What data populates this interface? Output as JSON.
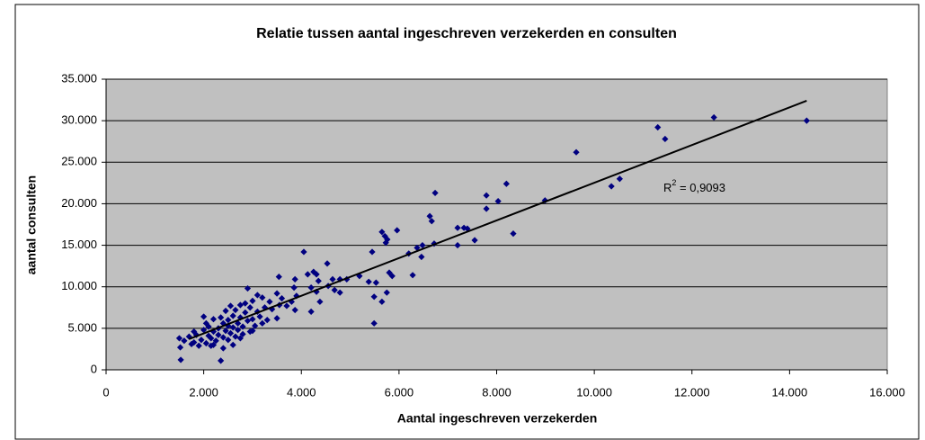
{
  "chart_data": {
    "type": "scatter",
    "title": "Relatie tussen aantal ingeschreven verzekerden en consulten",
    "x_label": "Aantal ingeschreven verzekerden",
    "y_label": "aantal consulten",
    "color": "#000080",
    "background": "#c0c0c0",
    "grid": true,
    "xlim": [
      0,
      16000
    ],
    "ylim": [
      0,
      35000
    ],
    "xticks": [
      0,
      {
        "value": 2000,
        "label": "2.000"
      },
      {
        "value": 4000,
        "label": "4.000"
      },
      {
        "value": 6000,
        "label": "6.000"
      },
      {
        "value": 8000,
        "label": "8.000"
      },
      {
        "value": 10000,
        "label": "10.000"
      },
      {
        "value": 12000,
        "label": "12.000"
      },
      {
        "value": 14000,
        "label": "14.000"
      },
      {
        "value": 16000,
        "label": "16.000"
      }
    ],
    "yticks": [
      0,
      {
        "value": 5000,
        "label": "5.000"
      },
      {
        "value": 10000,
        "label": "10.000"
      },
      {
        "value": 15000,
        "label": "15.000"
      },
      {
        "value": 20000,
        "label": "20.000"
      },
      {
        "value": 25000,
        "label": "25.000"
      },
      {
        "value": 30000,
        "label": "30.000"
      },
      {
        "value": 35000,
        "label": "35.000"
      }
    ],
    "x": [
      14350,
      12450,
      11300,
      11450,
      9630,
      10350,
      10520,
      8990,
      8200,
      8030,
      7790,
      7790,
      8340,
      6740,
      6630,
      6670,
      6720,
      7200,
      7330,
      7400,
      7200,
      7550,
      6370,
      6480,
      6460,
      6280,
      6200,
      5960,
      5710,
      5650,
      5730,
      5760,
      5450,
      5800,
      5860,
      5750,
      5650,
      5380,
      5530,
      5490,
      5490,
      5190,
      4930,
      4790,
      4640,
      4530,
      4550,
      4680,
      4790,
      4250,
      4310,
      4350,
      4310,
      4380,
      4200,
      4200,
      4050,
      4130,
      3870,
      3850,
      3870,
      3540,
      3500,
      1500,
      1520,
      1530,
      1600,
      1700,
      1750,
      1800,
      1850,
      1900,
      1950,
      2000,
      2000,
      2050,
      2100,
      2100,
      2150,
      2200,
      2200,
      2250,
      2300,
      2300,
      2350,
      2350,
      2400,
      2400,
      2400,
      2450,
      2500,
      2500,
      2500,
      2550,
      2550,
      2600,
      2600,
      2650,
      2650,
      2700,
      2700,
      2750,
      2750,
      2800,
      2800,
      2850,
      2900,
      2900,
      2950,
      2950,
      3000,
      3000,
      3050,
      3100,
      3100,
      3150,
      3200,
      3200,
      3250,
      3300,
      3350,
      3400,
      3500,
      3550,
      3600,
      3700,
      3800,
      3900,
      2200,
      2600,
      2750,
      1800,
      2050,
      2450,
      2850,
      3000,
      2150
    ],
    "y": [
      30000,
      30400,
      29200,
      27800,
      26200,
      22100,
      23000,
      20400,
      22400,
      20300,
      21000,
      19400,
      16400,
      21300,
      18500,
      17900,
      15200,
      17100,
      17100,
      17000,
      15000,
      15600,
      14700,
      15000,
      13600,
      11400,
      14000,
      16800,
      16100,
      16600,
      15300,
      15700,
      14200,
      11700,
      11300,
      9300,
      8200,
      10600,
      10500,
      8800,
      5600,
      11300,
      10900,
      10900,
      10900,
      12800,
      10100,
      9600,
      9300,
      11800,
      11500,
      10700,
      9400,
      8200,
      9900,
      7000,
      14200,
      11500,
      10900,
      9900,
      7200,
      11200,
      9200,
      3800,
      2700,
      1200,
      3500,
      4000,
      3100,
      3300,
      4200,
      2900,
      3600,
      4800,
      6400,
      3200,
      4100,
      5200,
      3800,
      4600,
      6100,
      3500,
      5000,
      4200,
      1100,
      6300,
      2600,
      5600,
      3900,
      4700,
      6000,
      5300,
      3600,
      7700,
      4400,
      5100,
      6500,
      4000,
      7200,
      5600,
      4800,
      6300,
      7800,
      5200,
      4300,
      6900,
      9800,
      5900,
      7500,
      4600,
      6100,
      8300,
      5300,
      7000,
      9000,
      6400,
      8700,
      5600,
      7500,
      6000,
      8200,
      7300,
      6200,
      7800,
      8600,
      7700,
      8200,
      8900,
      3000,
      3000,
      3800,
      4600,
      5600,
      7100,
      8000,
      4700,
      2900
    ],
    "trendline": {
      "x": [
        1700,
        14350
      ],
      "y": [
        3700,
        32400
      ]
    },
    "annotation": {
      "base": "R",
      "sup": "2",
      "text": " = 0,9093"
    }
  }
}
